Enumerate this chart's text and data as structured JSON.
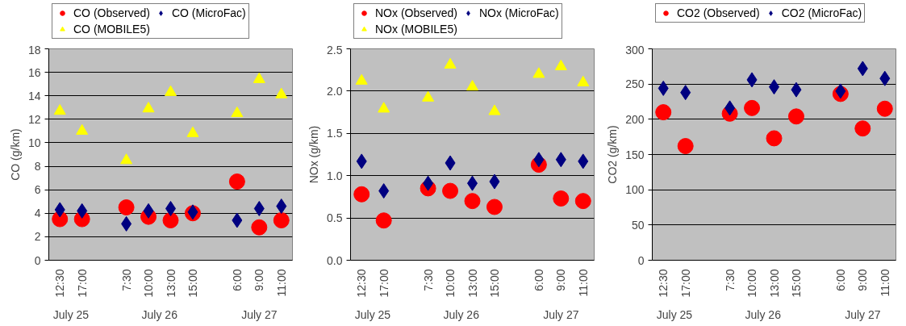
{
  "chart_data": [
    {
      "type": "scatter",
      "ylabel": "CO (g/km)",
      "categories": [
        "12:30",
        "17:00",
        null,
        "7:30",
        "10:00",
        "13:00",
        "15:00",
        null,
        "6:00",
        "9:00",
        "11:00"
      ],
      "annotations": [
        "July 25",
        "July 26",
        "July 27"
      ],
      "ylim": [
        0,
        18
      ],
      "yticks": [
        0,
        2,
        4,
        6,
        8,
        10,
        12,
        14,
        16,
        18
      ],
      "grid": "y",
      "legend": "top",
      "series": [
        {
          "name": "CO (Observed)",
          "color": "#ff0000",
          "marker": "circle",
          "values": [
            3.5,
            3.5,
            null,
            4.5,
            3.7,
            3.4,
            4.0,
            null,
            6.7,
            2.8,
            3.4
          ]
        },
        {
          "name": "CO (MicroFac)",
          "color": "#000080",
          "marker": "diamond",
          "values": [
            4.3,
            4.2,
            null,
            3.1,
            4.2,
            4.4,
            4.1,
            null,
            3.4,
            4.4,
            4.6
          ]
        },
        {
          "name": "CO (MOBILE5)",
          "color": "#ffff00",
          "marker": "triangle",
          "values": [
            12.7,
            11.0,
            null,
            8.5,
            12.9,
            14.3,
            10.8,
            null,
            12.5,
            15.4,
            14.1
          ]
        }
      ]
    },
    {
      "type": "scatter",
      "ylabel": "NOx (g/km)",
      "categories": [
        "12:30",
        "17:00",
        null,
        "7:30",
        "10:00",
        "13:00",
        "15:00",
        null,
        "6:00",
        "9:00",
        "11:00"
      ],
      "annotations": [
        "July 25",
        "July 26",
        "July 27"
      ],
      "ylim": [
        0,
        2.5
      ],
      "yticks": [
        {
          "value": 0,
          "label": "0.0"
        },
        0.5,
        {
          "value": 1,
          "label": "1.0"
        },
        1.5,
        {
          "value": 2,
          "label": "2.0"
        },
        2.5
      ],
      "grid": "y",
      "legend": "top",
      "series": [
        {
          "name": "NOx (Observed)",
          "color": "#ff0000",
          "marker": "circle",
          "values": [
            0.78,
            0.47,
            null,
            0.85,
            0.82,
            0.7,
            0.63,
            null,
            1.13,
            0.73,
            0.7
          ]
        },
        {
          "name": "NOx (MicroFac)",
          "color": "#000080",
          "marker": "diamond",
          "values": [
            1.17,
            0.82,
            null,
            0.91,
            1.15,
            0.91,
            0.93,
            null,
            1.19,
            1.19,
            1.17
          ]
        },
        {
          "name": "NOx (MOBILE5)",
          "color": "#ffff00",
          "marker": "triangle",
          "values": [
            2.12,
            1.79,
            null,
            1.92,
            2.31,
            2.05,
            1.76,
            null,
            2.2,
            2.29,
            2.1
          ]
        }
      ]
    },
    {
      "type": "scatter",
      "ylabel": "CO2 (g/km)",
      "categories": [
        "12:30",
        "17:00",
        null,
        "7:30",
        "10:00",
        "13:00",
        "15:00",
        null,
        "6:00",
        "9:00",
        "11:00"
      ],
      "annotations": [
        "July 25",
        "July 26",
        "July 27"
      ],
      "ylim": [
        0,
        300
      ],
      "yticks": [
        0,
        50,
        100,
        150,
        200,
        250,
        300
      ],
      "grid": "y",
      "legend": "top",
      "series": [
        {
          "name": "CO2 (Observed)",
          "color": "#ff0000",
          "marker": "circle",
          "values": [
            210,
            162,
            null,
            208,
            216,
            173,
            204,
            null,
            236,
            187,
            215
          ]
        },
        {
          "name": "CO2 (MicroFac)",
          "color": "#000080",
          "marker": "diamond",
          "values": [
            244,
            238,
            null,
            216,
            256,
            246,
            242,
            null,
            240,
            272,
            258
          ]
        }
      ]
    }
  ]
}
